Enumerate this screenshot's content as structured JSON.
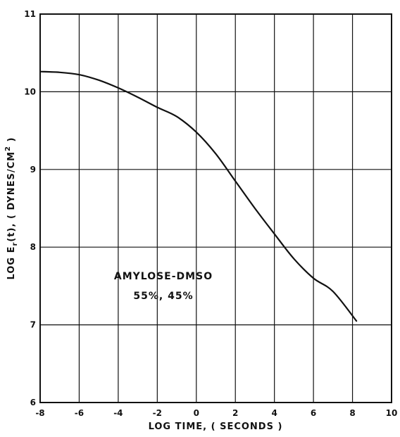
{
  "chart_data": {
    "type": "line",
    "title": "",
    "xlabel": "LOG TIME, ( SECONDS )",
    "ylabel": {
      "prefix": "LOG E",
      "subscript": "r",
      "middle": "(t), ( DYNES/CM",
      "superscript": "2",
      "suffix": " )"
    },
    "xlim": [
      -8,
      10
    ],
    "ylim": [
      6,
      11
    ],
    "xticks": [
      -8,
      -6,
      -4,
      -2,
      0,
      2,
      4,
      6,
      8,
      10
    ],
    "xtick_labels": [
      "-8",
      "-6",
      "-4",
      "-2",
      "0",
      "2",
      "4",
      "6",
      "8",
      "10"
    ],
    "yticks": [
      6,
      7,
      8,
      9,
      10,
      11
    ],
    "ytick_labels": [
      "6",
      "7",
      "8",
      "9",
      "10",
      "11"
    ],
    "grid": true,
    "legend": "none",
    "annotation": {
      "line1": "AMYLOSE-DMSO",
      "line2": "55%, 45%"
    },
    "series": [
      {
        "x": [
          -8,
          -7,
          -6,
          -5,
          -4,
          -3,
          -2,
          -1,
          0,
          1,
          2,
          3,
          4,
          5,
          6,
          7,
          8.2
        ],
        "y": [
          10.26,
          10.25,
          10.22,
          10.15,
          10.05,
          9.93,
          9.8,
          9.68,
          9.48,
          9.2,
          8.85,
          8.5,
          8.17,
          7.85,
          7.6,
          7.43,
          7.05
        ]
      }
    ]
  }
}
